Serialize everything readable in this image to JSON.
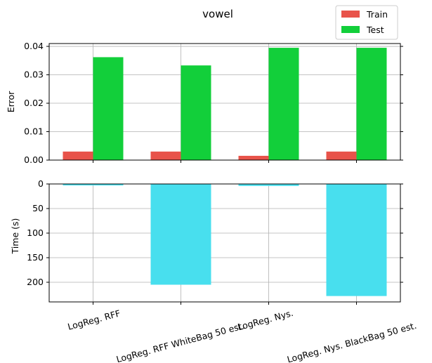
{
  "chart_data": [
    {
      "type": "bar",
      "title": "vowel",
      "xlabel": "",
      "ylabel": "Error",
      "ylim": [
        0,
        0.041
      ],
      "yticks": [
        "0.00",
        "0.01",
        "0.02",
        "0.03",
        "0.04"
      ],
      "categories": [
        "LogReg. RFF",
        "LogReg. RFF WhiteBag 50 est.",
        "LogReg. Nys.",
        "LogReg. Nys. BlackBag 50 est."
      ],
      "series": [
        {
          "name": "Train",
          "color": "#e8534a",
          "values": [
            0.003,
            0.003,
            0.0015,
            0.003
          ]
        },
        {
          "name": "Test",
          "color": "#12cf3a",
          "values": [
            0.0362,
            0.0333,
            0.0395,
            0.0395
          ]
        }
      ],
      "grid": true,
      "legend": "top-right"
    },
    {
      "type": "bar",
      "xlabel": "",
      "ylabel": "Time (s)",
      "ylim": [
        240,
        0
      ],
      "inverted_y": true,
      "yticks": [
        "0",
        "50",
        "100",
        "150",
        "200"
      ],
      "categories": [
        "LogReg. RFF",
        "LogReg. RFF WhiteBag 50 est.",
        "LogReg. Nys.",
        "LogReg. Nys. BlackBag 50 est."
      ],
      "series": [
        {
          "color": "#48dfee",
          "values": [
            3,
            205,
            4,
            228
          ]
        }
      ],
      "grid": true
    }
  ]
}
